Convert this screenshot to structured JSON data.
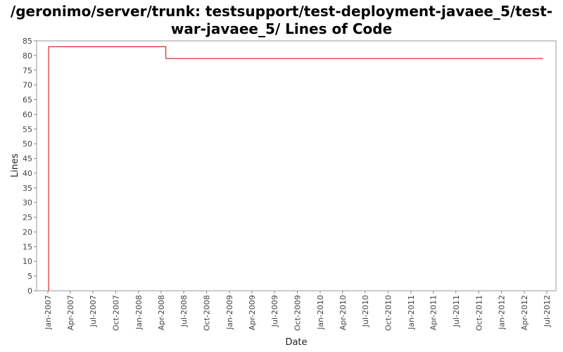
{
  "chart_data": {
    "type": "line",
    "title": "/geronimo/server/trunk: testsupport/test-deployment-javaee_5/test-war-javaee_5/ Lines of Code",
    "xlabel": "Date",
    "ylabel": "Lines",
    "ylim": [
      0,
      85
    ],
    "y_ticks": [
      0,
      5,
      10,
      15,
      20,
      25,
      30,
      35,
      40,
      45,
      50,
      55,
      60,
      65,
      70,
      75,
      80,
      85
    ],
    "x_ticks": [
      "Jan-2007",
      "Apr-2007",
      "Jul-2007",
      "Oct-2007",
      "Jan-2008",
      "Apr-2008",
      "Jul-2008",
      "Oct-2008",
      "Jan-2009",
      "Apr-2009",
      "Jul-2009",
      "Oct-2009",
      "Jan-2010",
      "Apr-2010",
      "Jul-2010",
      "Oct-2010",
      "Jan-2011",
      "Apr-2011",
      "Jul-2011",
      "Oct-2011",
      "Jan-2012",
      "Apr-2012",
      "Jul-2012"
    ],
    "step": "post",
    "grid": false,
    "series": [
      {
        "color": "#cc0000",
        "points": [
          {
            "x": "2007-01-04",
            "y": 0
          },
          {
            "x": "2007-01-04",
            "y": 83
          },
          {
            "x": "2008-04-20",
            "y": 83
          },
          {
            "x": "2008-04-20",
            "y": 79
          },
          {
            "x": "2012-06-15",
            "y": 79
          }
        ]
      }
    ]
  }
}
